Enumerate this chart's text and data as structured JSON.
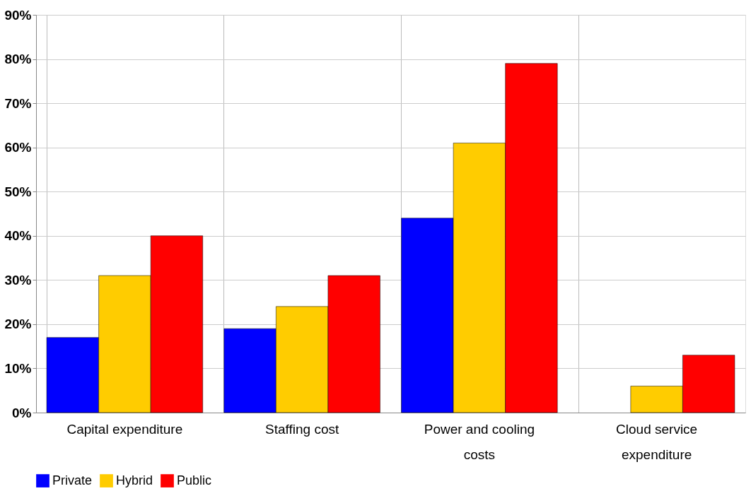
{
  "chart_data": {
    "type": "bar",
    "categories": [
      "Capital expenditure",
      "Staffing cost",
      "Power and cooling costs",
      "Cloud service expenditure"
    ],
    "series": [
      {
        "name": "Private",
        "color": "#0000ff",
        "values": [
          17,
          19,
          44,
          0
        ]
      },
      {
        "name": "Hybrid",
        "color": "#ffcc00",
        "values": [
          31,
          24,
          61,
          6
        ]
      },
      {
        "name": "Public",
        "color": "#ff0000",
        "values": [
          40,
          31,
          79,
          13
        ]
      }
    ],
    "ylim": [
      0,
      90
    ],
    "yticks": [
      {
        "value": 0,
        "label": "0%"
      },
      {
        "value": 10,
        "label": "10%"
      },
      {
        "value": 20,
        "label": "20%"
      },
      {
        "value": 30,
        "label": "30%"
      },
      {
        "value": 40,
        "label": "40%"
      },
      {
        "value": 50,
        "label": "50%"
      },
      {
        "value": 60,
        "label": "60%"
      },
      {
        "value": 70,
        "label": "70%"
      },
      {
        "value": 80,
        "label": "80%"
      },
      {
        "value": 90,
        "label": "90%"
      }
    ],
    "grid": true,
    "legend": "bottom"
  }
}
